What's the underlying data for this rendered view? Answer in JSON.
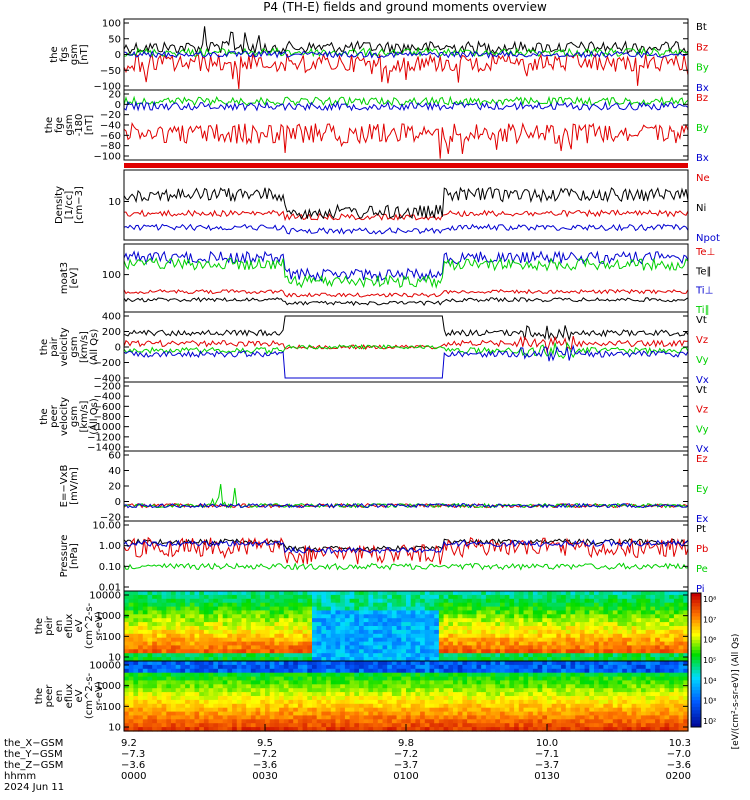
{
  "title": "P4 (TH-E) fields and ground moments overview",
  "colors": {
    "black": "#000000",
    "red": "#e00000",
    "green": "#00d000",
    "blue": "#0000d0"
  },
  "chart_data": [
    {
      "type": "line",
      "ylabel": [
        "the",
        "fgs",
        "gsm",
        "[nT]"
      ],
      "yticks": [
        "100",
        "50",
        "0",
        "−50",
        "−100"
      ],
      "ylim": [
        -110,
        110
      ],
      "series": [
        {
          "name": "Bt",
          "color": "black",
          "base": 20,
          "amp": 18
        },
        {
          "name": "Bz",
          "color": "red",
          "base": -25,
          "amp": 25
        },
        {
          "name": "By",
          "color": "green",
          "base": 5,
          "amp": 10
        },
        {
          "name": "Bx",
          "color": "blue",
          "base": -8,
          "amp": 8
        }
      ]
    },
    {
      "type": "line",
      "ylabel": [
        "the",
        "fge",
        "gsm",
        "-180",
        "[nT]"
      ],
      "yticks": [
        "20",
        "0",
        "−20",
        "−40",
        "−60",
        "−80",
        "−100"
      ],
      "ylim": [
        -110,
        25
      ],
      "series": [
        {
          "name": "Bz",
          "color": "red",
          "base": -70,
          "amp": 20
        },
        {
          "name": "By",
          "color": "green",
          "base": 2,
          "amp": 8
        },
        {
          "name": "Bx",
          "color": "blue",
          "base": -5,
          "amp": 8
        }
      ]
    },
    {
      "type": "line",
      "log": true,
      "ylabel": [
        "Density",
        "[1/cc]",
        "[cm−3]"
      ],
      "yticks": [
        "10"
      ],
      "series": [
        {
          "name": "Ne",
          "color": "red"
        },
        {
          "name": "Ni",
          "color": "black"
        },
        {
          "name": "Npot",
          "color": "blue"
        }
      ]
    },
    {
      "type": "line",
      "log": true,
      "ylabel": [
        "moat3",
        "[eV]"
      ],
      "yticks": [
        "100"
      ],
      "series": [
        {
          "name": "Te⊥",
          "color": "red"
        },
        {
          "name": "Te∥",
          "color": "black"
        },
        {
          "name": "Ti⊥",
          "color": "blue"
        },
        {
          "name": "Ti∥",
          "color": "green"
        }
      ]
    },
    {
      "type": "line",
      "ylabel": [
        "the",
        "pair",
        "velocity",
        "gsm",
        "[km/s]",
        "(All Qs)"
      ],
      "yticks": [
        "400",
        "200",
        "0",
        "−200",
        "−400"
      ],
      "ylim": [
        -450,
        460
      ],
      "series": [
        {
          "name": "Vt",
          "color": "black"
        },
        {
          "name": "Vz",
          "color": "red"
        },
        {
          "name": "Vy",
          "color": "green"
        },
        {
          "name": "Vx",
          "color": "blue"
        }
      ]
    },
    {
      "type": "line",
      "ylabel": [
        "the",
        "peer",
        "velocity",
        "gsm",
        "[km/s]",
        "(All Qs)"
      ],
      "yticks": [
        "−200",
        "−400",
        "−600",
        "−800",
        "−1000",
        "−1200",
        "−1400"
      ],
      "ylim": [
        -1450,
        -150
      ],
      "series": [
        {
          "name": "Vt",
          "color": "black"
        },
        {
          "name": "Vz",
          "color": "red"
        },
        {
          "name": "Vy",
          "color": "green"
        },
        {
          "name": "Vx",
          "color": "blue"
        }
      ]
    },
    {
      "type": "line",
      "ylabel": [
        "E=−VxB",
        "[mV/m]"
      ],
      "yticks": [
        "60",
        "40",
        "20",
        "0",
        "−20"
      ],
      "ylim": [
        -20,
        62
      ],
      "series": [
        {
          "name": "Ez",
          "color": "red"
        },
        {
          "name": "Ey",
          "color": "green"
        },
        {
          "name": "Ex",
          "color": "blue"
        }
      ]
    },
    {
      "type": "line",
      "log": true,
      "ylabel": [
        "Pressure",
        "[nPa]"
      ],
      "yticks": [
        "10.00",
        "1.00",
        "0.10",
        "0.01"
      ],
      "series": [
        {
          "name": "Pt",
          "color": "black"
        },
        {
          "name": "Pb",
          "color": "red"
        },
        {
          "name": "Pe",
          "color": "green"
        },
        {
          "name": "Pi",
          "color": "blue"
        }
      ]
    },
    {
      "type": "heatmap",
      "ylabel": [
        "the",
        "peir",
        "en",
        "eflux",
        "eV",
        "(cm^2-s-",
        "sr-eV)"
      ],
      "yticks": [
        "10000",
        "1000",
        "100",
        "10"
      ]
    },
    {
      "type": "heatmap",
      "ylabel": [
        "the",
        "peer",
        "en",
        "eflux",
        "eV",
        "(cm^2-s-",
        "sr-eV)"
      ],
      "yticks": [
        "10000",
        "1000",
        "100",
        "10"
      ]
    }
  ],
  "colorbar": {
    "ticks": [
      "10⁸",
      "10⁷",
      "10⁶",
      "10⁵",
      "10⁴",
      "10³",
      "10²"
    ],
    "label": "[eV/(cm²-s-sr-eV)] (All Qs)"
  },
  "xaxis": {
    "row_labels": [
      "the_X−GSM",
      "the_Y−GSM",
      "the_Z−GSM",
      "hhmm",
      "2024 Jun 11"
    ],
    "ticks": [
      {
        "vals": [
          "9.2",
          "−7.3",
          "−3.6",
          "0000"
        ]
      },
      {
        "vals": [
          "9.5",
          "−7.2",
          "−3.6",
          "0030"
        ]
      },
      {
        "vals": [
          "9.8",
          "−7.2",
          "−3.7",
          "0100"
        ]
      },
      {
        "vals": [
          "10.0",
          "−7.1",
          "−3.7",
          "0130"
        ]
      },
      {
        "vals": [
          "10.3",
          "−7.0",
          "−3.6",
          "0200"
        ]
      }
    ]
  }
}
